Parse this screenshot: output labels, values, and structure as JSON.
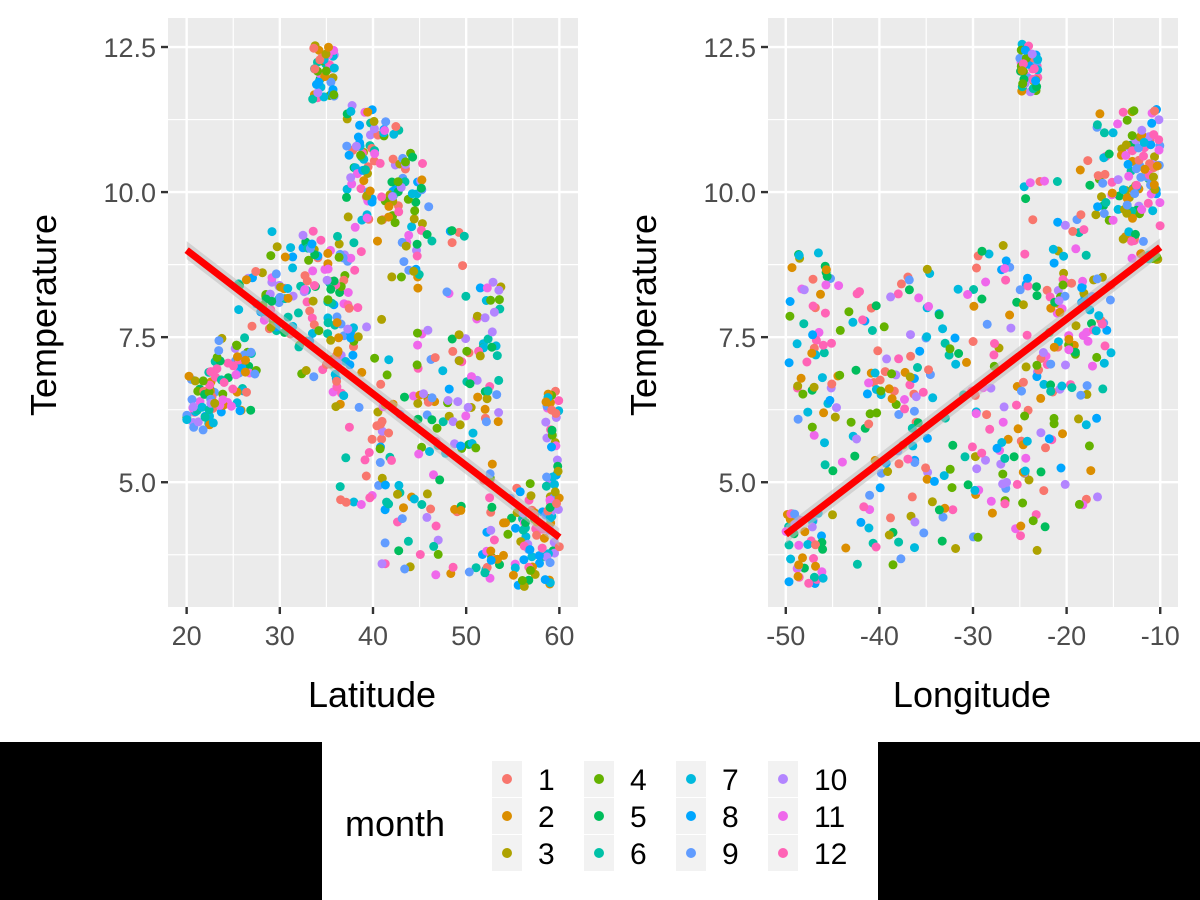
{
  "chart_data": [
    {
      "type": "scatter",
      "title": "",
      "xlabel": "Latitude",
      "ylabel": "Temperature",
      "xlim": [
        18,
        62
      ],
      "ylim": [
        2.85,
        13.0
      ],
      "xticks": [
        20,
        30,
        40,
        50,
        60
      ],
      "yticks": [
        5.0,
        7.5,
        10.0,
        12.5
      ],
      "ytick_labels": [
        "5.0",
        "7.5",
        "10.0",
        "12.5"
      ],
      "grid": true,
      "color_by": "month",
      "point_clusters": [
        {
          "x": [
            20,
            23
          ],
          "y": [
            5.8,
            6.9
          ]
        },
        {
          "x": [
            22,
            27
          ],
          "y": [
            6.2,
            7.5
          ]
        },
        {
          "x": [
            25,
            30
          ],
          "y": [
            6.8,
            8.8
          ]
        },
        {
          "x": [
            29,
            34
          ],
          "y": [
            7.4,
            9.4
          ]
        },
        {
          "x": [
            32,
            37
          ],
          "y": [
            6.5,
            9.2
          ]
        },
        {
          "x": [
            33.5,
            36
          ],
          "y": [
            11.6,
            12.6
          ]
        },
        {
          "x": [
            35,
            39
          ],
          "y": [
            7.0,
            9.5
          ]
        },
        {
          "x": [
            37,
            40
          ],
          "y": [
            9.5,
            11.5
          ]
        },
        {
          "x": [
            39,
            43
          ],
          "y": [
            9.0,
            11.3
          ]
        },
        {
          "x": [
            36,
            42
          ],
          "y": [
            4.5,
            8.0
          ]
        },
        {
          "x": [
            40,
            47
          ],
          "y": [
            3.5,
            6.5
          ]
        },
        {
          "x": [
            42,
            46
          ],
          "y": [
            8.5,
            10.7
          ]
        },
        {
          "x": [
            44,
            50
          ],
          "y": [
            6.0,
            9.5
          ]
        },
        {
          "x": [
            46,
            53
          ],
          "y": [
            3.4,
            6.5
          ]
        },
        {
          "x": [
            50,
            54
          ],
          "y": [
            6.0,
            8.5
          ]
        },
        {
          "x": [
            52,
            58
          ],
          "y": [
            3.2,
            5.0
          ]
        },
        {
          "x": [
            56,
            60
          ],
          "y": [
            3.2,
            4.5
          ]
        },
        {
          "x": [
            58.5,
            60
          ],
          "y": [
            4.5,
            6.6
          ]
        }
      ],
      "trend_line": {
        "x": [
          20,
          60
        ],
        "y": [
          9.0,
          4.05
        ],
        "color": "#ff0000"
      }
    },
    {
      "type": "scatter",
      "title": "",
      "xlabel": "Longitude",
      "ylabel": "Temperature",
      "xlim": [
        -51.9,
        -8.1
      ],
      "ylim": [
        2.85,
        13.0
      ],
      "xticks": [
        -50,
        -40,
        -30,
        -20,
        -10
      ],
      "yticks": [
        5.0,
        7.5,
        10.0,
        12.5
      ],
      "ytick_labels": [
        "5.0",
        "7.5",
        "10.0",
        "12.5"
      ],
      "grid": true,
      "color_by": "month",
      "point_clusters": [
        {
          "x": [
            -50,
            -46
          ],
          "y": [
            3.2,
            4.5
          ]
        },
        {
          "x": [
            -50,
            -45
          ],
          "y": [
            5.8,
            9.0
          ]
        },
        {
          "x": [
            -48,
            -40
          ],
          "y": [
            3.5,
            8.5
          ]
        },
        {
          "x": [
            -42,
            -36
          ],
          "y": [
            3.5,
            7.0
          ]
        },
        {
          "x": [
            -40,
            -32
          ],
          "y": [
            5.0,
            8.7
          ]
        },
        {
          "x": [
            -36,
            -28
          ],
          "y": [
            3.6,
            8.6
          ]
        },
        {
          "x": [
            -30,
            -24
          ],
          "y": [
            4.0,
            9.2
          ]
        },
        {
          "x": [
            -28,
            -20
          ],
          "y": [
            3.8,
            9.0
          ]
        },
        {
          "x": [
            -25,
            -23
          ],
          "y": [
            11.7,
            12.6
          ]
        },
        {
          "x": [
            -25,
            -20
          ],
          "y": [
            6.0,
            10.2
          ]
        },
        {
          "x": [
            -22,
            -16
          ],
          "y": [
            4.5,
            8.5
          ]
        },
        {
          "x": [
            -20,
            -15
          ],
          "y": [
            7.0,
            10.8
          ]
        },
        {
          "x": [
            -17,
            -12
          ],
          "y": [
            9.5,
            11.4
          ]
        },
        {
          "x": [
            -13,
            -10
          ],
          "y": [
            10.0,
            11.5
          ]
        },
        {
          "x": [
            -14,
            -10
          ],
          "y": [
            8.8,
            10.6
          ]
        }
      ],
      "trend_line": {
        "x": [
          -50,
          -10
        ],
        "y": [
          4.1,
          9.05
        ],
        "color": "#ff0000"
      }
    }
  ],
  "legend": {
    "title": "month",
    "entries": [
      {
        "label": "1",
        "color": "#F8766D"
      },
      {
        "label": "2",
        "color": "#DB8E00"
      },
      {
        "label": "3",
        "color": "#AEA200"
      },
      {
        "label": "4",
        "color": "#64B200"
      },
      {
        "label": "5",
        "color": "#00BD5C"
      },
      {
        "label": "6",
        "color": "#00C1A7"
      },
      {
        "label": "7",
        "color": "#00BADE"
      },
      {
        "label": "8",
        "color": "#00A6FF"
      },
      {
        "label": "9",
        "color": "#619CFF"
      },
      {
        "label": "10",
        "color": "#B385FF"
      },
      {
        "label": "11",
        "color": "#EF67EB"
      },
      {
        "label": "12",
        "color": "#FF63B6"
      }
    ]
  },
  "colors": {
    "panel_background": "#EBEBEB",
    "grid": "#FFFFFF",
    "trend_line": "#FF0000",
    "band": "#BDBDBD"
  }
}
